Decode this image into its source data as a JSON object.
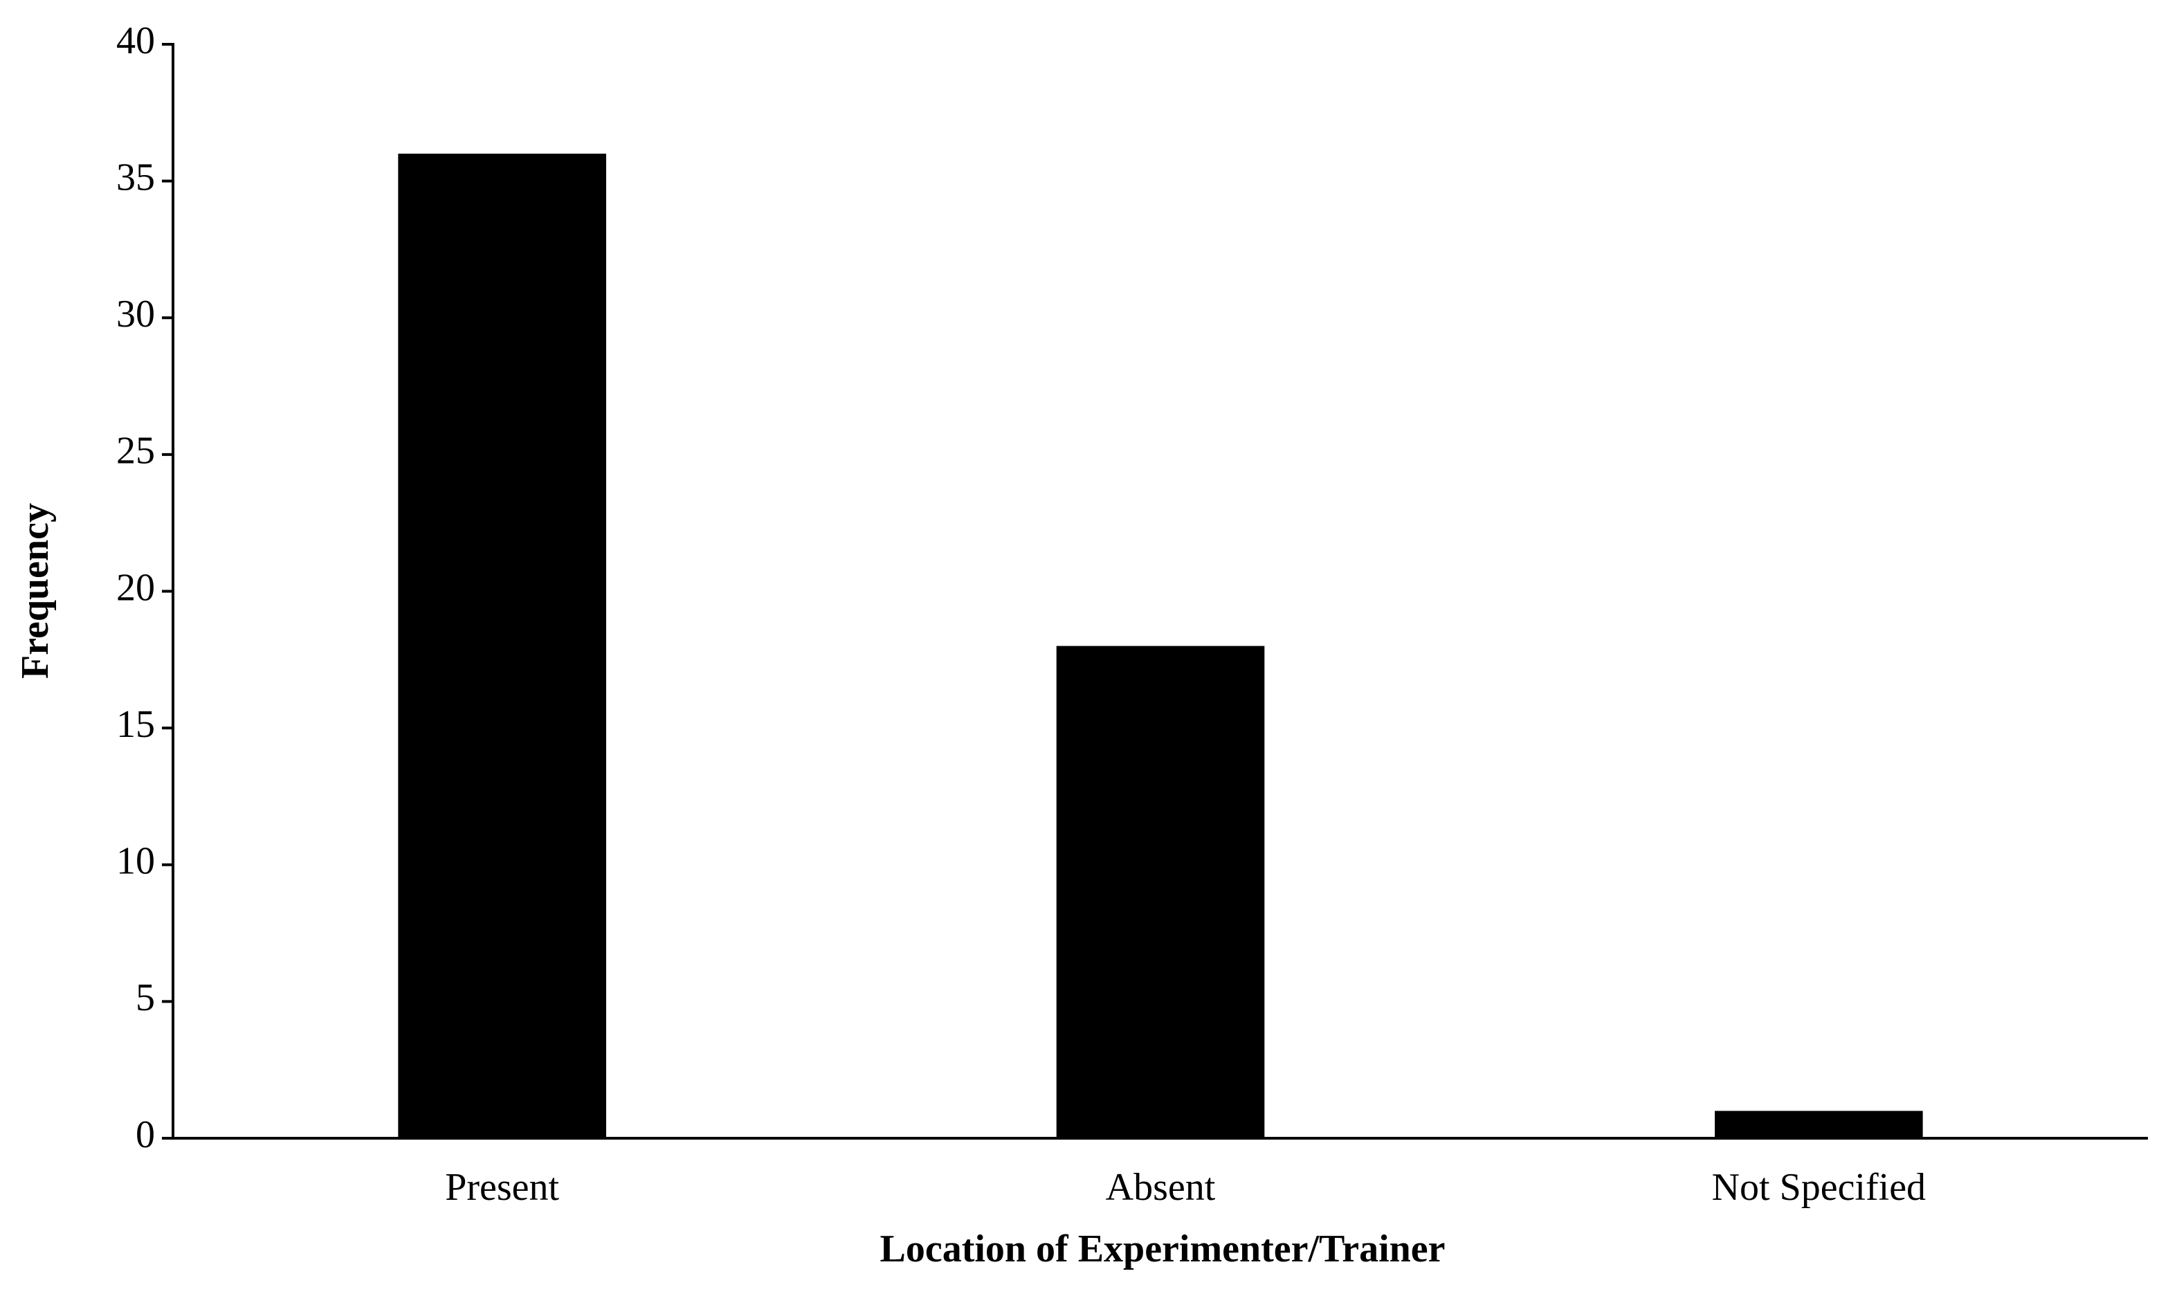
{
  "chart_data": {
    "type": "bar",
    "x_label": "Location of Experimenter/Trainer",
    "y_label": "Frequency",
    "categories": [
      "Present",
      "Absent",
      "Not Specified"
    ],
    "values": [
      36,
      18,
      1
    ],
    "color": "#000000",
    "ylim": [
      0,
      40
    ],
    "yticks": [
      0,
      5,
      10,
      15,
      20,
      25,
      30,
      35,
      40
    ],
    "grid": false
  }
}
